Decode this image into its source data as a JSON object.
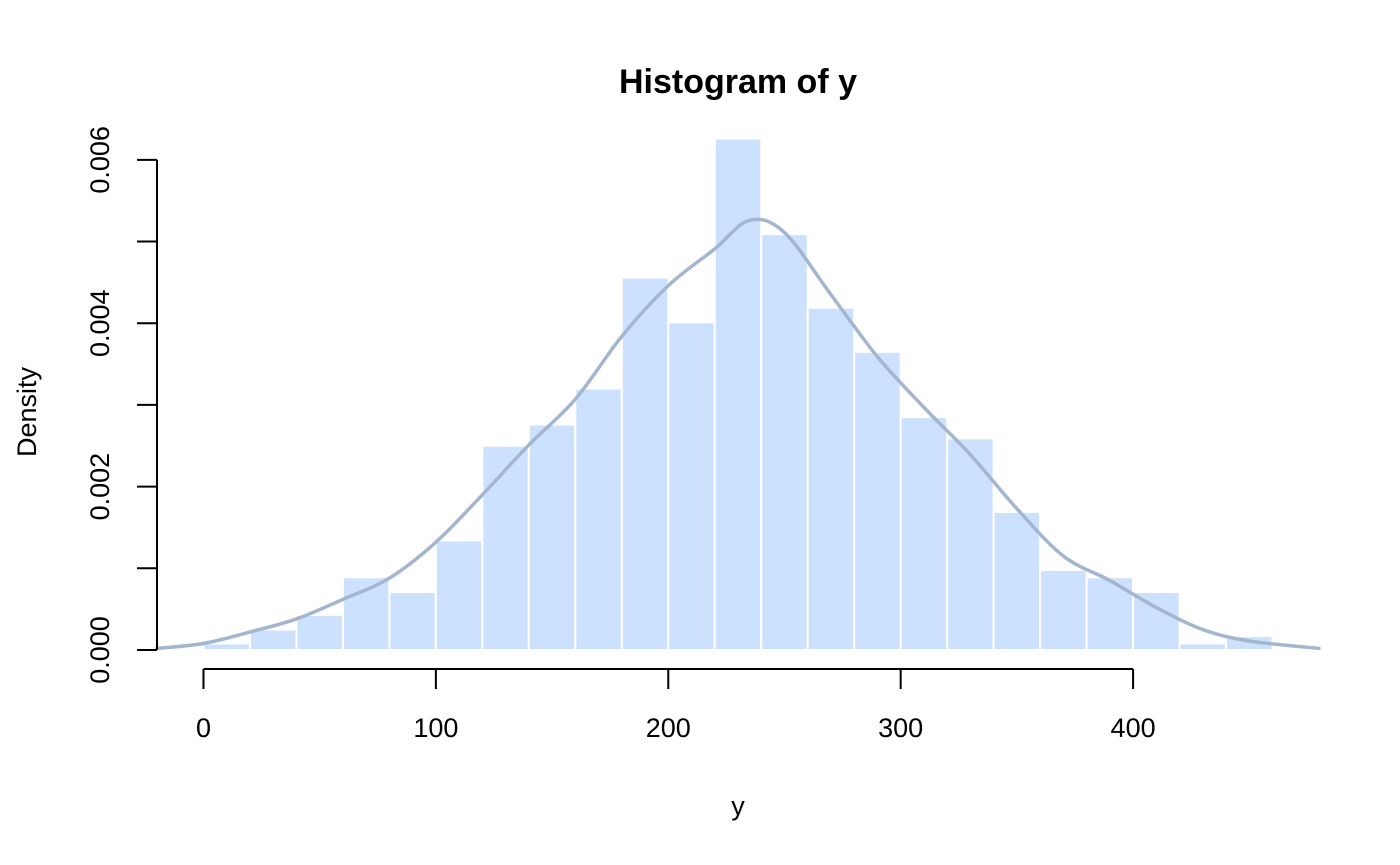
{
  "colors": {
    "bar_fill": "#cce1fe",
    "bar_border": "#ffffff",
    "density_line": "#a3b5cf",
    "axis": "#000000"
  },
  "chart_data": {
    "type": "histogram",
    "title": "Histogram of y",
    "xlabel": "y",
    "ylabel": "Density",
    "xlim": [
      -20,
      480
    ],
    "ylim": [
      0,
      0.0065
    ],
    "x_ticks": [
      0,
      100,
      200,
      300,
      400
    ],
    "x_tick_labels": [
      "0",
      "100",
      "200",
      "300",
      "400"
    ],
    "y_ticks": [
      0,
      0.001,
      0.002,
      0.003,
      0.004,
      0.005,
      0.006
    ],
    "y_tick_labels": [
      "0.000",
      "",
      "0.002",
      "",
      "0.004",
      "",
      "0.006"
    ],
    "grid": false,
    "bins": {
      "breaks": [
        0,
        20,
        40,
        60,
        80,
        100,
        120,
        140,
        160,
        180,
        200,
        220,
        240,
        260,
        280,
        300,
        320,
        340,
        360,
        380,
        400,
        420,
        440,
        460
      ],
      "density": [
        8e-05,
        0.00025,
        0.00043,
        0.00089,
        0.00071,
        0.00134,
        0.0025,
        0.00276,
        0.0032,
        0.00456,
        0.00401,
        0.00626,
        0.00509,
        0.00419,
        0.00365,
        0.00285,
        0.00259,
        0.00169,
        0.00098,
        0.00089,
        0.00071,
        8e-05,
        0.00017
      ]
    },
    "density_curve": {
      "x": [
        -20,
        0,
        20,
        40,
        60,
        80,
        100,
        120,
        140,
        160,
        180,
        200,
        220,
        235,
        250,
        270,
        290,
        310,
        330,
        350,
        370,
        390,
        410,
        430,
        450,
        480
      ],
      "y": [
        2e-05,
        8e-05,
        0.00022,
        0.00038,
        0.00062,
        0.00088,
        0.00132,
        0.0019,
        0.00251,
        0.00307,
        0.00384,
        0.00446,
        0.00491,
        0.00526,
        0.00511,
        0.00435,
        0.00359,
        0.00297,
        0.00239,
        0.00173,
        0.00115,
        0.00085,
        0.00052,
        0.00025,
        0.00011,
        2e-05
      ]
    }
  }
}
